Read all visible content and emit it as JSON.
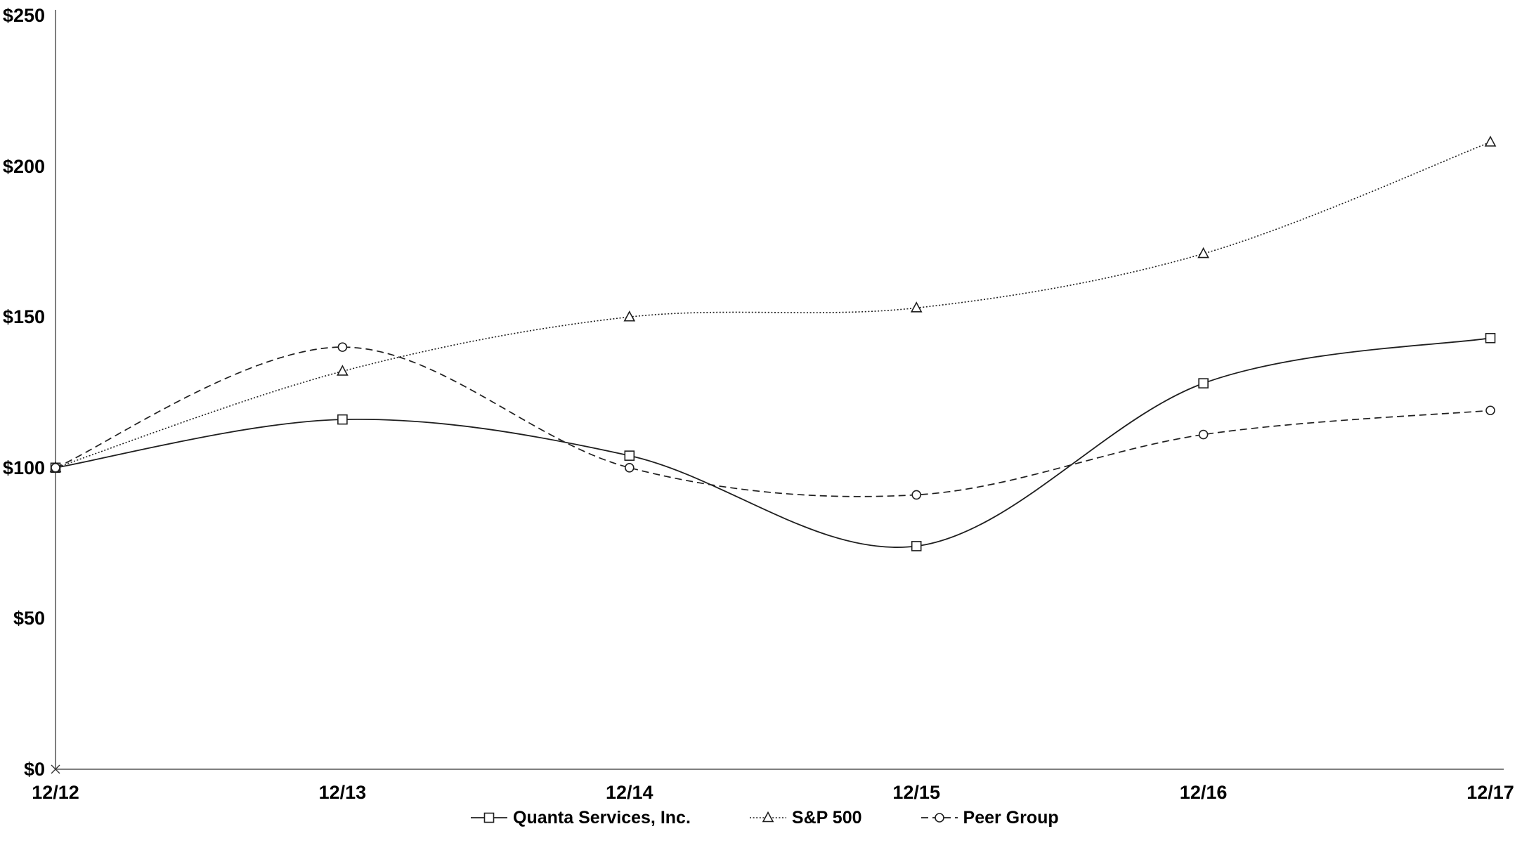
{
  "colors": {
    "line": "#1f1f1f",
    "axis": "#7f7f7f",
    "text": "#000000",
    "background": "#ffffff",
    "marker_fill": "#ffffff"
  },
  "chart_data": {
    "type": "line",
    "title": "",
    "xlabel": "",
    "ylabel": "",
    "categories": [
      "12/12",
      "12/13",
      "12/14",
      "12/15",
      "12/16",
      "12/17"
    ],
    "y_ticks": [
      "$0",
      "$50",
      "$100",
      "$150",
      "$200",
      "$250"
    ],
    "y_tick_values": [
      0,
      50,
      100,
      150,
      200,
      250
    ],
    "ylim": [
      0,
      250
    ],
    "grid": false,
    "legend_position": "bottom",
    "line_smoothing": true,
    "origin_marker": "x-cross",
    "series": [
      {
        "name": "Quanta Services, Inc.",
        "marker": "square",
        "line_style": "solid",
        "values": [
          100,
          116,
          104,
          74,
          128,
          143
        ]
      },
      {
        "name": "S&P 500",
        "marker": "triangle",
        "line_style": "dotted",
        "values": [
          100,
          132,
          150,
          153,
          171,
          208
        ]
      },
      {
        "name": "Peer Group",
        "marker": "circle",
        "line_style": "dashed",
        "values": [
          100,
          140,
          100,
          91,
          111,
          119
        ]
      }
    ]
  }
}
